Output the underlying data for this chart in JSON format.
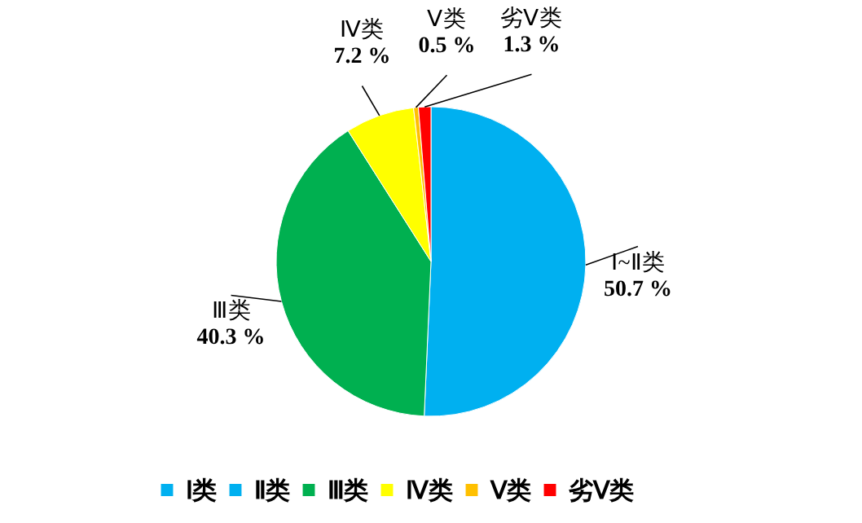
{
  "chart_data": {
    "type": "pie",
    "categories": [
      "Ⅰ类",
      "Ⅱ类",
      "Ⅲ类",
      "Ⅳ类",
      "Ⅴ类",
      "劣Ⅴ类"
    ],
    "values": [
      0,
      50.7,
      40.3,
      7.2,
      0.5,
      1.3
    ],
    "colors": [
      "#00b0f0",
      "#00b0f0",
      "#00b050",
      "#ffff00",
      "#ffc000",
      "#ff0000"
    ],
    "value_labels": [
      null,
      "Ⅰ~Ⅱ类\n50.7 %",
      "Ⅲ类\n40.3 %",
      "Ⅳ类\n7.2 %",
      "Ⅴ类\n0.5 %",
      "劣Ⅴ类\n1.3 %"
    ],
    "legend": "bottom"
  }
}
